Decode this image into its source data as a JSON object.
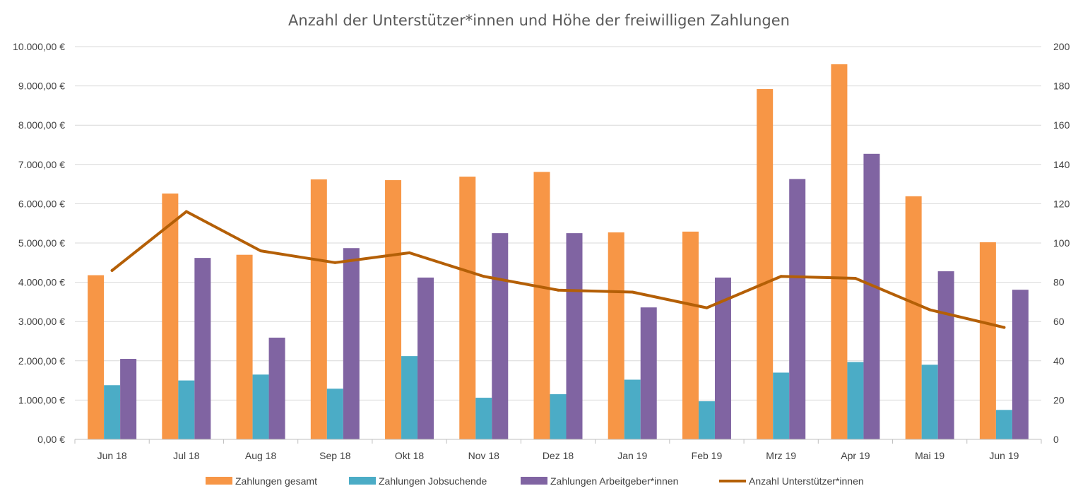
{
  "chart_data": {
    "type": "bar",
    "title": "Anzahl der Unterstützer*innen und Höhe der freiwilligen Zahlungen",
    "categories": [
      "Jun 18",
      "Jul 18",
      "Aug 18",
      "Sep 18",
      "Okt 18",
      "Nov 18",
      "Dez 18",
      "Jan 19",
      "Feb 19",
      "Mrz 19",
      "Apr 19",
      "Mai 19",
      "Jun 19"
    ],
    "y_left": {
      "ylim": [
        0,
        10000
      ],
      "ticks": [
        "0,00 €",
        "1.000,00 €",
        "2.000,00 €",
        "3.000,00 €",
        "4.000,00 €",
        "5.000,00 €",
        "6.000,00 €",
        "7.000,00 €",
        "8.000,00 €",
        "9.000,00 €",
        "10.000,00 €"
      ]
    },
    "y_right": {
      "ylim": [
        0,
        200
      ],
      "ticks": [
        "0",
        "20",
        "40",
        "60",
        "80",
        "100",
        "120",
        "140",
        "160",
        "180",
        "200"
      ]
    },
    "grid": true,
    "legend_position": "bottom",
    "series": [
      {
        "name": "Zahlungen gesamt",
        "type": "bar",
        "axis": "left",
        "color": "#F79646",
        "values": [
          4180,
          6260,
          4700,
          6620,
          6600,
          6690,
          6810,
          5270,
          5290,
          8920,
          9550,
          6190,
          5020
        ]
      },
      {
        "name": "Zahlungen Jobsuchende",
        "type": "bar",
        "axis": "left",
        "color": "#4BACC6",
        "values": [
          1380,
          1500,
          1650,
          1290,
          2120,
          1060,
          1150,
          1520,
          970,
          1700,
          1970,
          1900,
          750
        ]
      },
      {
        "name": "Zahlungen Arbeitgeber*innen",
        "type": "bar",
        "axis": "left",
        "color": "#8064A2",
        "values": [
          2050,
          4620,
          2590,
          4870,
          4120,
          5250,
          5250,
          3360,
          4120,
          6630,
          7270,
          4280,
          3810
        ]
      },
      {
        "name": "Anzahl Unterstützer*innen",
        "type": "line",
        "axis": "right",
        "color": "#B45F06",
        "values": [
          86,
          116,
          96,
          90,
          95,
          83,
          76,
          75,
          67,
          83,
          82,
          66,
          57
        ]
      }
    ]
  }
}
